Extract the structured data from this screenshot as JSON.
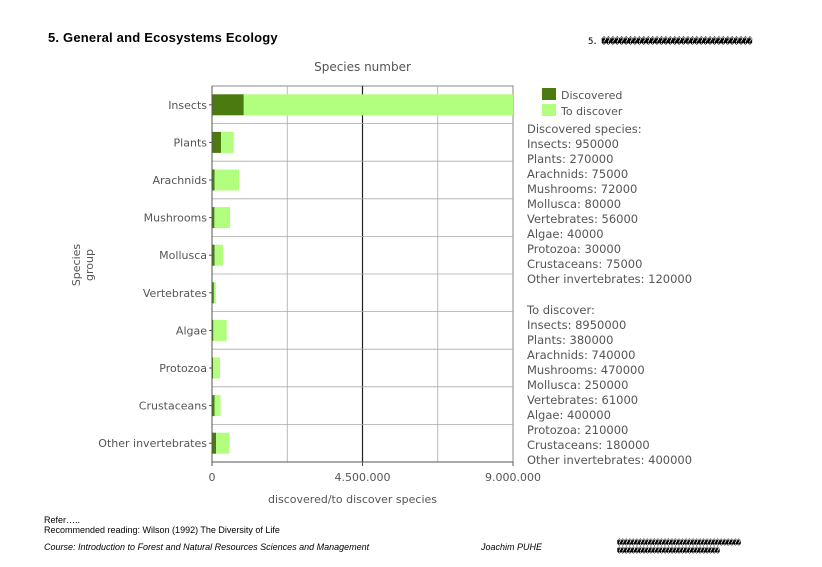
{
  "slide": {
    "title": "5. General and Ecosystems Ecology",
    "page_marker": "5. ����������������������������������",
    "references_label": "Refer…..",
    "recommended_reading": "Recommended reading: Wilson (1992) The Diversity of Life",
    "course": "Course: Introduction to Forest and Natural Resources Sciences and Management",
    "author": "Joachim PUHE",
    "logo_text": "�����������������������������������\n�����������������������������"
  },
  "colors": {
    "discovered": "#4a7a10",
    "to_discover": "#b2ff80",
    "grid": "#888888",
    "axis": "#555555",
    "text": "#555555"
  },
  "chart_data": {
    "type": "bar",
    "orientation": "horizontal",
    "stacked": true,
    "title": "Species number",
    "xlabel": "discovered/to discover species",
    "ylabel": "Species group",
    "xlim": [
      0,
      9000000
    ],
    "xticks": [
      0,
      4500000,
      9000000
    ],
    "xtick_labels": [
      "0",
      "4.500.000",
      "9.000.000"
    ],
    "grid": true,
    "legend_position": "right",
    "categories": [
      "Insects",
      "Plants",
      "Arachnids",
      "Mushrooms",
      "Mollusca",
      "Vertebrates",
      "Algae",
      "Protozoa",
      "Crustaceans",
      "Other invertebrates"
    ],
    "series": [
      {
        "name": "Discovered",
        "values": [
          950000,
          270000,
          75000,
          72000,
          80000,
          56000,
          40000,
          30000,
          75000,
          120000
        ]
      },
      {
        "name": "To discover",
        "values": [
          8950000,
          380000,
          740000,
          470000,
          250000,
          61000,
          400000,
          210000,
          180000,
          400000
        ]
      }
    ],
    "annotations": {
      "discovered_heading": "Discovered species:",
      "discovered_lines": [
        "Insects: 950000",
        "Plants: 270000",
        "Arachnids: 75000",
        "Mushrooms: 72000",
        "Mollusca: 80000",
        "Vertebrates: 56000",
        "Algae: 40000",
        "Protozoa: 30000",
        "Crustaceans: 75000",
        "Other invertebrates: 120000"
      ],
      "to_discover_heading": "To discover:",
      "to_discover_lines": [
        "Insects: 8950000",
        "Plants: 380000",
        "Arachnids: 740000",
        "Mushrooms: 470000",
        "Mollusca: 250000",
        "Vertebrates: 61000",
        "Algae: 400000",
        "Protozoa: 210000",
        "Crustaceans: 180000",
        "Other invertebrates: 400000"
      ]
    }
  }
}
